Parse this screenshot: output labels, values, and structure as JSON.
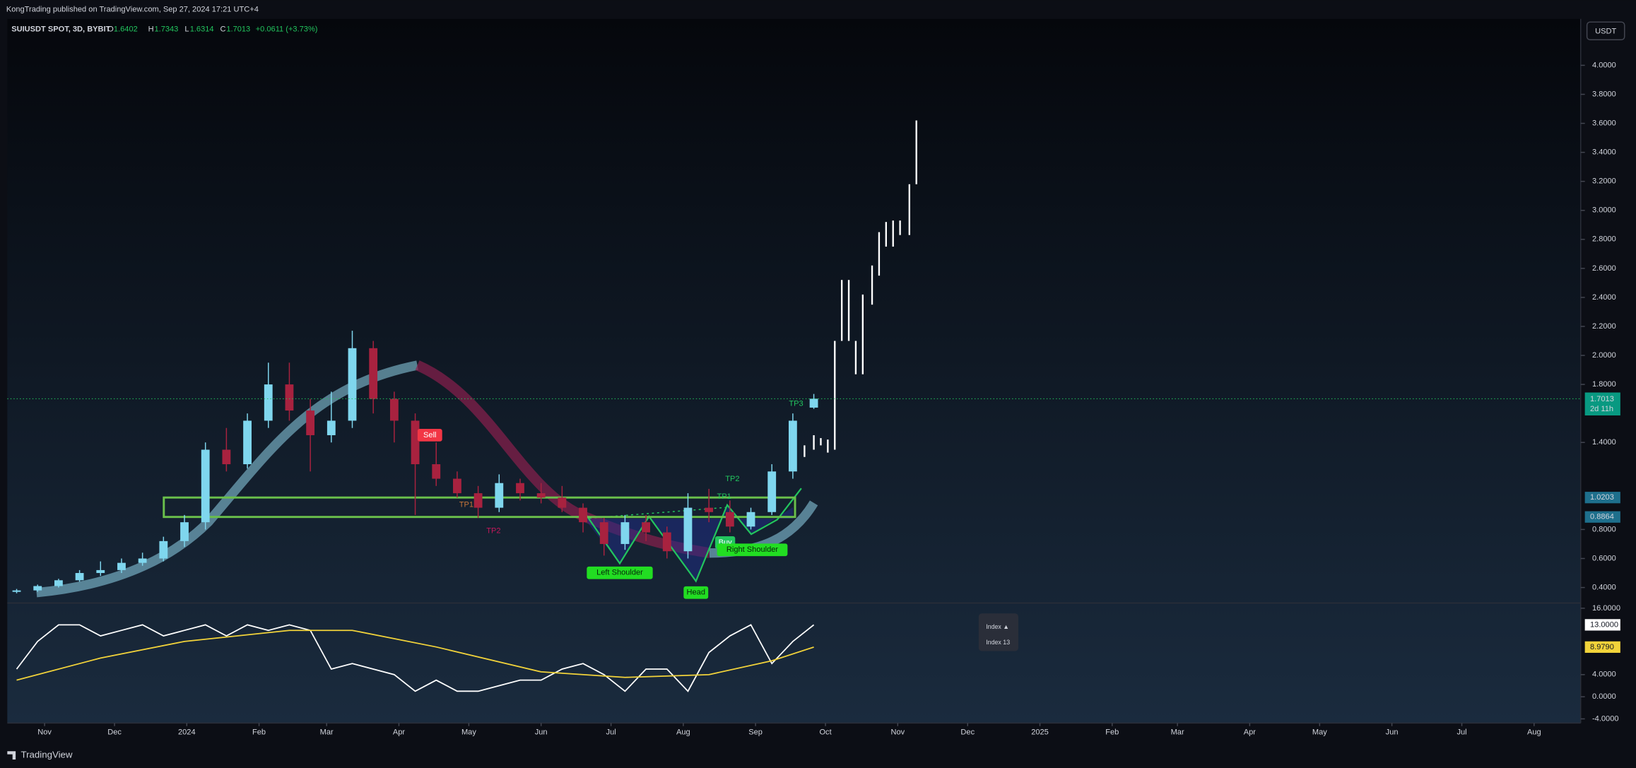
{
  "header": {
    "publisher": "KongTrading published on TradingView.com, Sep 27, 2024 17:21 UTC+4",
    "symbol": "SUIUSDT SPOT, 3D, BYBIT",
    "o": "O",
    "h": "H",
    "l": "L",
    "c": "C",
    "change": "+0.0611 (+3.73%)",
    "currency": "USDT",
    "countdown": "2d 11h",
    "brand": "TradingView"
  },
  "chart_data": [
    {
      "type": "candlestick",
      "up_color": "#7fd6ee",
      "down_color": "#a8223f",
      "xlim": [
        15,
        690
      ],
      "ylim": [
        0.3,
        4.32
      ],
      "xticks": [
        {
          "value": 31,
          "label": "Nov"
        },
        {
          "value": 61,
          "label": "Dec"
        },
        {
          "value": 92,
          "label": "2024"
        },
        {
          "value": 123,
          "label": "Feb"
        },
        {
          "value": 152,
          "label": "Mar"
        },
        {
          "value": 183,
          "label": "Apr"
        },
        {
          "value": 213,
          "label": "May"
        },
        {
          "value": 244,
          "label": "Jun"
        },
        {
          "value": 274,
          "label": "Jul"
        },
        {
          "value": 305,
          "label": "Aug"
        },
        {
          "value": 336,
          "label": "Sep"
        },
        {
          "value": 366,
          "label": "Oct"
        },
        {
          "value": 397,
          "label": "Nov"
        },
        {
          "value": 427,
          "label": "Dec"
        },
        {
          "value": 458,
          "label": "2025"
        },
        {
          "value": 489,
          "label": "Feb"
        },
        {
          "value": 517,
          "label": "Mar"
        },
        {
          "value": 548,
          "label": "Apr"
        },
        {
          "value": 578,
          "label": "May"
        },
        {
          "value": 609,
          "label": "Jun"
        },
        {
          "value": 639,
          "label": "Jul"
        },
        {
          "value": 670,
          "label": "Aug"
        }
      ],
      "yticks": [
        {
          "value": 0.4,
          "label": "0.4000"
        },
        {
          "value": 0.6,
          "label": "0.6000"
        },
        {
          "value": 0.8,
          "label": "0.8000"
        },
        {
          "value": 1.4,
          "label": "1.4000"
        },
        {
          "value": 1.8,
          "label": "1.8000"
        },
        {
          "value": 2,
          "label": "2.0000"
        },
        {
          "value": 2.2,
          "label": "2.2000"
        },
        {
          "value": 2.4,
          "label": "2.4000"
        },
        {
          "value": 2.6,
          "label": "2.6000"
        },
        {
          "value": 2.8,
          "label": "2.8000"
        },
        {
          "value": 3,
          "label": "3.0000"
        },
        {
          "value": 3.2,
          "label": "3.2000"
        },
        {
          "value": 3.4,
          "label": "3.4000"
        },
        {
          "value": 3.6,
          "label": "3.6000"
        },
        {
          "value": 3.8,
          "label": "3.8000"
        },
        {
          "value": 4,
          "label": "4.0000"
        }
      ],
      "candles": {
        "x": [
          19,
          28,
          37,
          46,
          55,
          64,
          73,
          82,
          91,
          100,
          109,
          118,
          127,
          136,
          145,
          154,
          163,
          172,
          181,
          190,
          199,
          208,
          217,
          226,
          235,
          244,
          253,
          262,
          271,
          280,
          289,
          298,
          307,
          316,
          325,
          334,
          343,
          352,
          361
        ],
        "open": [
          0.37,
          0.38,
          0.41,
          0.45,
          0.5,
          0.52,
          0.57,
          0.6,
          0.72,
          0.85,
          1.35,
          1.25,
          1.55,
          1.8,
          1.62,
          1.45,
          1.55,
          2.05,
          1.7,
          1.55,
          1.25,
          1.15,
          1.05,
          0.95,
          1.12,
          1.05,
          1.02,
          0.95,
          0.85,
          0.7,
          0.85,
          0.78,
          0.65,
          0.95,
          0.92,
          0.82,
          0.92,
          1.2,
          1.6402
        ],
        "high": [
          0.39,
          0.42,
          0.46,
          0.52,
          0.58,
          0.6,
          0.64,
          0.75,
          0.9,
          1.4,
          1.5,
          1.6,
          1.95,
          1.95,
          1.7,
          1.75,
          2.17,
          2.1,
          1.75,
          1.6,
          1.4,
          1.2,
          1.1,
          1.18,
          1.15,
          1.12,
          1.1,
          0.98,
          0.88,
          0.9,
          0.9,
          0.82,
          1.05,
          1.08,
          1,
          0.95,
          1.25,
          1.6,
          1.7343
        ],
        "low": [
          0.36,
          0.37,
          0.4,
          0.44,
          0.48,
          0.5,
          0.55,
          0.58,
          0.68,
          0.8,
          1.2,
          1.22,
          1.5,
          1.55,
          1.2,
          1.4,
          1.5,
          1.6,
          1.4,
          0.9,
          1.1,
          1.02,
          0.88,
          0.92,
          1,
          0.98,
          0.92,
          0.78,
          0.62,
          0.66,
          0.72,
          0.6,
          0.6,
          0.85,
          0.78,
          0.8,
          0.9,
          1.15,
          1.6314
        ],
        "close": [
          0.38,
          0.41,
          0.45,
          0.5,
          0.52,
          0.57,
          0.6,
          0.72,
          0.85,
          1.35,
          1.25,
          1.55,
          1.8,
          1.62,
          1.45,
          1.55,
          2.05,
          1.7,
          1.55,
          1.25,
          1.15,
          1.05,
          0.95,
          1.12,
          1.05,
          1.02,
          0.95,
          0.85,
          0.7,
          0.85,
          0.78,
          0.65,
          0.95,
          0.92,
          0.82,
          0.92,
          1.2,
          1.55,
          1.7013
        ]
      },
      "projection": {
        "color": "#ffffff",
        "x": [
          357,
          361,
          364,
          367,
          370,
          373,
          376,
          379,
          382,
          386,
          389,
          392,
          395,
          398,
          402,
          405
        ],
        "low": [
          1.3,
          1.35,
          1.38,
          1.33,
          1.35,
          2.1,
          2.1,
          1.87,
          1.87,
          2.35,
          2.55,
          2.75,
          2.75,
          2.83,
          2.83,
          3.18
        ],
        "high": [
          1.38,
          1.45,
          1.43,
          1.42,
          2.1,
          2.52,
          2.52,
          2.1,
          2.42,
          2.62,
          2.85,
          2.92,
          2.93,
          2.93,
          3.18,
          3.62
        ]
      },
      "zone": [
        1.0203,
        0.8864
      ],
      "annotations": [
        "Sell",
        "TP1",
        "TP2",
        "TP2",
        "TP1",
        "TP3",
        "Buy",
        "Left Shoulder",
        "Head",
        "Right Shoulder"
      ]
    },
    {
      "type": "line",
      "ylim": [
        -4.75,
        16.75
      ],
      "yticks": [
        {
          "value": -4,
          "label": "-4.0000"
        },
        {
          "value": 0,
          "label": "0.0000"
        },
        {
          "value": 4,
          "label": "4.0000"
        },
        {
          "value": 16,
          "label": "16.0000"
        }
      ],
      "tooltip": [
        "Index ▲",
        "Index 13"
      ],
      "series": [
        {
          "color": "#ffffff",
          "last_label": {
            "value": 13,
            "label": "13.0000"
          },
          "x": [
            19,
            28,
            37,
            46,
            55,
            64,
            73,
            82,
            91,
            100,
            109,
            118,
            127,
            136,
            145,
            154,
            163,
            172,
            181,
            190,
            199,
            208,
            217,
            226,
            235,
            244,
            253,
            262,
            271,
            280,
            289,
            298,
            307,
            316,
            325,
            334,
            343,
            352,
            361
          ],
          "values": [
            5,
            10,
            13,
            13,
            11,
            12,
            13,
            11,
            12,
            13,
            11,
            13,
            12,
            13,
            12,
            5,
            6,
            5,
            4,
            1,
            3,
            1,
            1,
            2,
            3,
            3,
            5,
            6,
            4,
            1,
            5,
            5,
            1,
            8,
            11,
            13,
            6,
            10,
            13
          ]
        },
        {
          "color": "#f2d33a",
          "last_label": {
            "value": 8.979,
            "label": "8.9790"
          },
          "x": [
            19,
            55,
            91,
            136,
            163,
            199,
            244,
            280,
            316,
            343,
            361
          ],
          "values": [
            3,
            7,
            10,
            12,
            12,
            9,
            4.5,
            3.5,
            4,
            6.5,
            8.979
          ]
        }
      ]
    }
  ]
}
